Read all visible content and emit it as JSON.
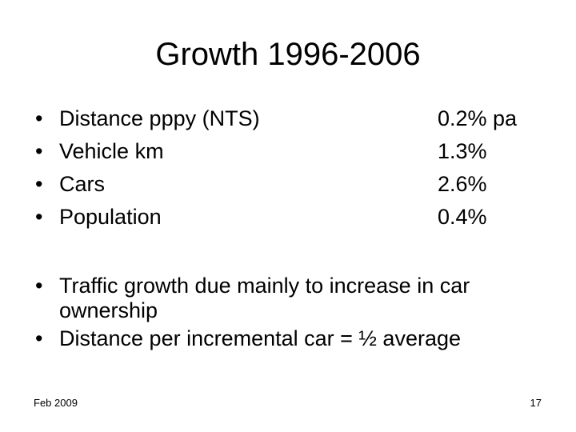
{
  "slide": {
    "title": "Growth 1996-2006",
    "stats": [
      {
        "label": "Distance pppy (NTS)",
        "value": "0.2% pa"
      },
      {
        "label": "Vehicle km",
        "value": "1.3%"
      },
      {
        "label": "Cars",
        "value": "2.6%"
      },
      {
        "label": "Population",
        "value": "0.4%"
      }
    ],
    "notes": [
      "Traffic growth due mainly to increase in car ownership",
      "Distance per incremental car = ½ average"
    ],
    "bullet_glyph": "•",
    "footer": {
      "date": "Feb 2009",
      "page_number": "17"
    }
  }
}
